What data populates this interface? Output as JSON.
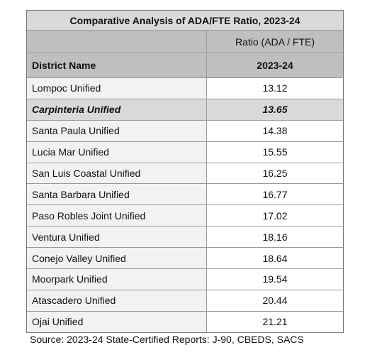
{
  "table": {
    "title": "Comparative Analysis of ADA/FTE Ratio, 2023-24",
    "header_top": [
      "",
      "Ratio (ADA / FTE)"
    ],
    "header": [
      "District Name",
      "2023-24"
    ],
    "rows": [
      [
        "Lompoc Unified",
        "13.12"
      ],
      [
        "Carpinteria Unified",
        "13.65"
      ],
      [
        "Santa Paula Unified",
        "14.38"
      ],
      [
        "Lucia Mar Unified",
        "15.55"
      ],
      [
        "San Luis Coastal Unified",
        "16.25"
      ],
      [
        "Santa Barbara Unified",
        "16.77"
      ],
      [
        "Paso Robles Joint Unified",
        "17.02"
      ],
      [
        "Ventura Unified",
        "18.16"
      ],
      [
        "Conejo Valley Unified",
        "18.64"
      ],
      [
        "Moorpark Unified",
        "19.54"
      ],
      [
        "Atascadero Unified",
        "20.44"
      ],
      [
        "Ojai Unified",
        "21.21"
      ]
    ],
    "source": "Source: 2023-24 State-Certified Reports: J-90, CBEDS, SACS"
  }
}
